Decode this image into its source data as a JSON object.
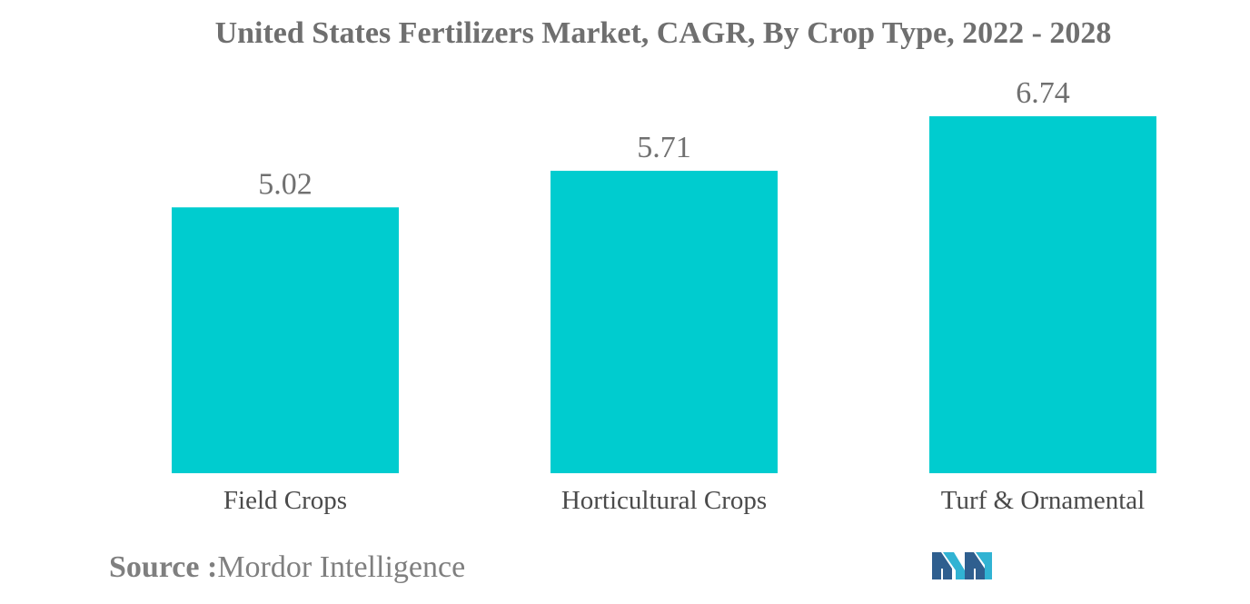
{
  "chart_data": {
    "type": "bar",
    "title": "United States Fertilizers Market, CAGR, By Crop Type, 2022 - 2028",
    "categories": [
      "Field Crops",
      "Horticultural Crops",
      "Turf & Ornamental"
    ],
    "values": [
      5.02,
      5.71,
      6.74
    ],
    "data_labels": [
      "5.02",
      "5.71",
      "6.74"
    ],
    "xlabel": "",
    "ylabel": "",
    "ylim": [
      0,
      6.74
    ],
    "grid": false,
    "legend": "none",
    "bar_color": "#00cccf"
  },
  "source": {
    "label": "Source :",
    "value": "Mordor Intelligence"
  },
  "logo": {
    "icon": "mordor-intelligence-logo-icon",
    "colors": [
      "#2f5f8f",
      "#31b3d3"
    ]
  }
}
